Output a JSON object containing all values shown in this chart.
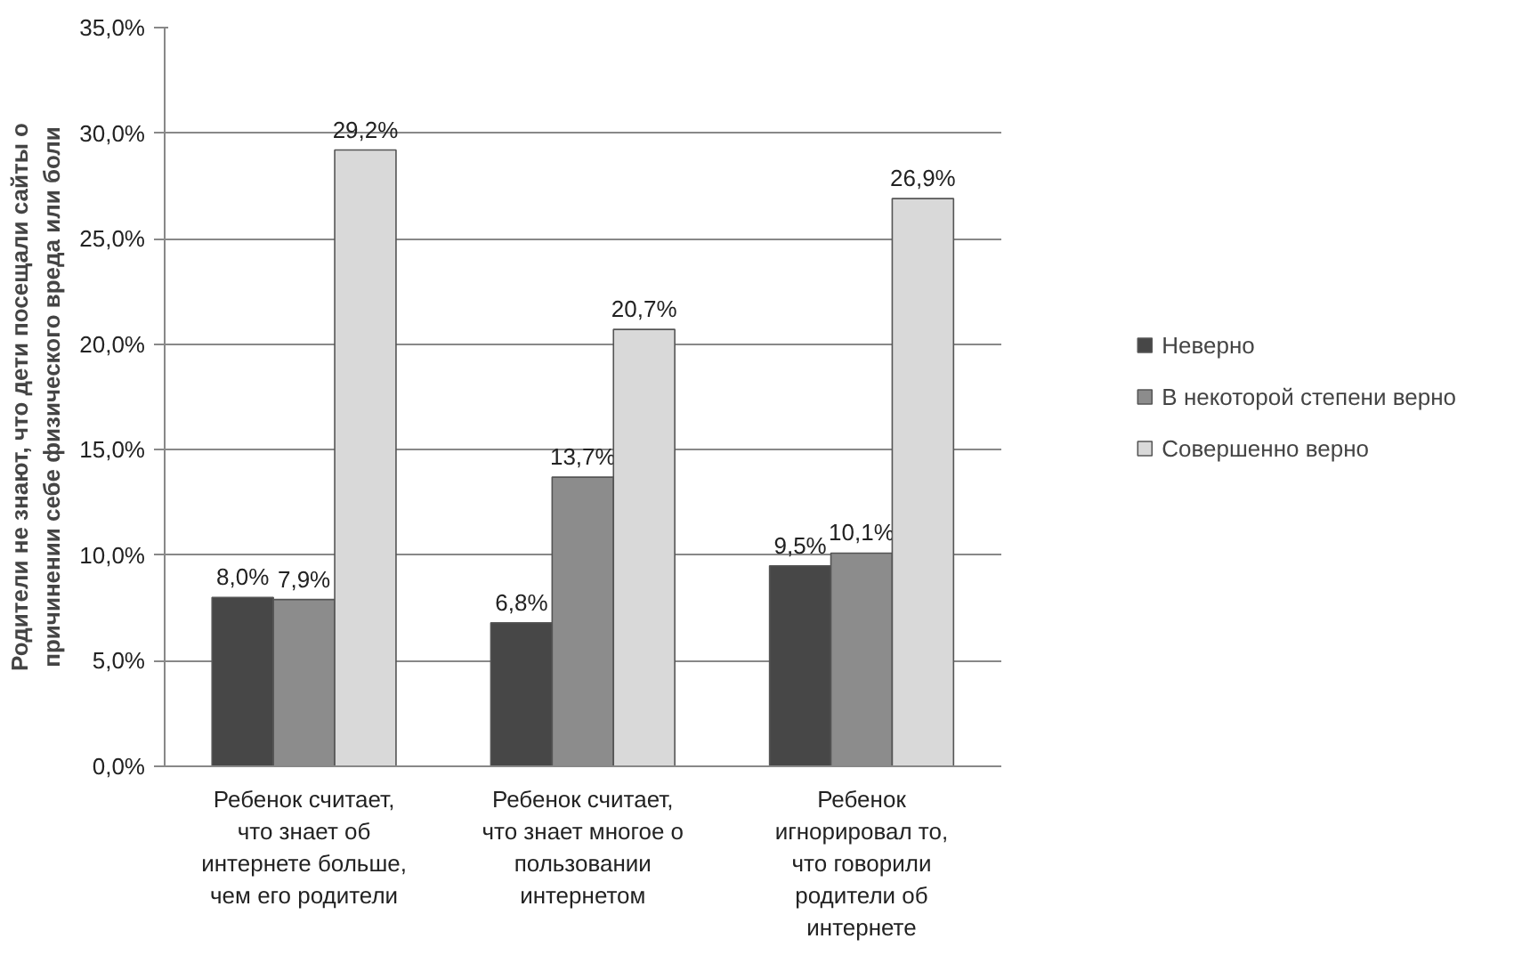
{
  "chart_data": {
    "type": "bar",
    "categories": [
      "Ребенок считает, что знает об интернете больше, чем его родители",
      "Ребенок считает, что знает многое о пользовании интернетом",
      "Ребенок игнорировал то, что говорили родители об интернете"
    ],
    "ylabel": "Родители не знают, что дети посещали сайты о причинении себе физического вреда или боли",
    "series": [
      {
        "name": "Неверно",
        "color": "#474747",
        "values": [
          8.0,
          6.8,
          9.5
        ],
        "value_labels": [
          "8,0%",
          "6,8%",
          "9,5%"
        ]
      },
      {
        "name": "В некоторой степени верно",
        "color": "#8c8c8c",
        "values": [
          7.9,
          13.7,
          10.1
        ],
        "value_labels": [
          "7,9%",
          "13,7%",
          "10,1%"
        ]
      },
      {
        "name": "Совершенно верно",
        "color": "#d9d9d9",
        "values": [
          29.2,
          20.7,
          26.9
        ],
        "value_labels": [
          "29,2%",
          "20,7%",
          "26,9%"
        ]
      }
    ],
    "ylim": [
      0,
      35
    ],
    "yticks": [
      {
        "value": 0,
        "label": "0,0%"
      },
      {
        "value": 5,
        "label": "5,0%"
      },
      {
        "value": 10,
        "label": "10,0%"
      },
      {
        "value": 15,
        "label": "15,0%"
      },
      {
        "value": 20,
        "label": "20,0%"
      },
      {
        "value": 25,
        "label": "25,0%"
      },
      {
        "value": 30,
        "label": "30,0%"
      },
      {
        "value": 35,
        "label": "35,0%"
      }
    ],
    "grid": "y",
    "legend": "right"
  }
}
